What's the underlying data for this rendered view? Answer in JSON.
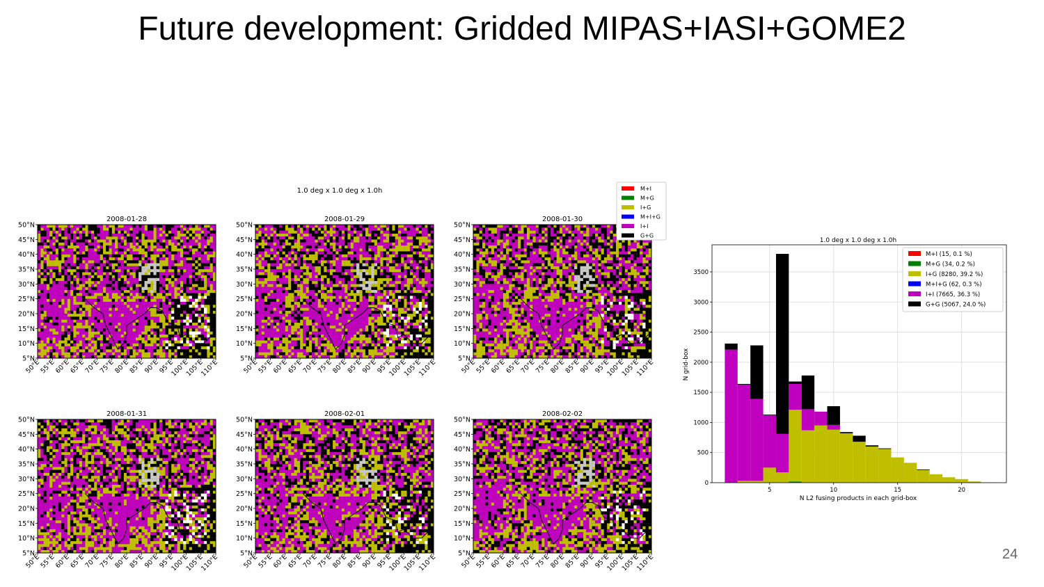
{
  "slide": {
    "title": "Future development: Gridded MIPAS+IASI+GOME2",
    "page_number": "24"
  },
  "maps_figure": {
    "suptitle": "1.0 deg x 1.0 deg x 1.0h",
    "legend": [
      {
        "label": "M+I",
        "color": "#ff0000"
      },
      {
        "label": "M+G",
        "color": "#008000"
      },
      {
        "label": "I+G",
        "color": "#bfbf00"
      },
      {
        "label": "M+I+G",
        "color": "#0000ff"
      },
      {
        "label": "I+I",
        "color": "#bf00bf"
      },
      {
        "label": "G+G",
        "color": "#000000"
      }
    ],
    "panels": [
      {
        "date": "2008-01-28"
      },
      {
        "date": "2008-01-29"
      },
      {
        "date": "2008-01-30"
      },
      {
        "date": "2008-01-31"
      },
      {
        "date": "2008-02-01"
      },
      {
        "date": "2008-02-02"
      }
    ],
    "lat_ticks": [
      "50°N",
      "45°N",
      "40°N",
      "35°N",
      "30°N",
      "25°N",
      "20°N",
      "15°N",
      "10°N",
      "5°N"
    ],
    "lon_ticks": [
      "50°E",
      "55°E",
      "60°E",
      "65°E",
      "70°E",
      "75°E",
      "80°E",
      "85°E",
      "90°E",
      "95°E",
      "100°E",
      "105°E",
      "110°E"
    ],
    "lon_range": [
      50,
      110
    ],
    "lat_range": [
      5,
      50
    ]
  },
  "chart_data": {
    "type": "bar",
    "stacked": true,
    "title": "1.0 deg x 1.0 deg x 1.0h",
    "xlabel": "N L2 fusing products in each grid-box",
    "ylabel": "N grid-box",
    "xlim": [
      0.5,
      23.5
    ],
    "ylim": [
      0,
      3950
    ],
    "xticks": [
      5,
      10,
      15,
      20
    ],
    "yticks": [
      0,
      500,
      1000,
      1500,
      2000,
      2500,
      3000,
      3500
    ],
    "grid": true,
    "legend_position": "top-right",
    "categories": [
      2,
      3,
      4,
      5,
      6,
      7,
      8,
      9,
      10,
      11,
      12,
      13,
      14,
      15,
      16,
      17,
      18,
      19,
      20,
      21,
      22
    ],
    "series": [
      {
        "name": "M+I (15, 0.1 %)",
        "color": "#ff0000",
        "values": [
          0,
          0,
          0,
          0,
          0,
          0,
          0,
          0,
          0,
          0,
          0,
          0,
          0,
          0,
          0,
          0,
          0,
          0,
          0,
          0,
          0
        ]
      },
      {
        "name": "M+G (34, 0.2 %)",
        "color": "#008000",
        "values": [
          0,
          0,
          0,
          0,
          0,
          20,
          0,
          0,
          0,
          0,
          0,
          0,
          0,
          0,
          0,
          0,
          0,
          0,
          0,
          0,
          0
        ]
      },
      {
        "name": "I+G (8280, 39.2 %)",
        "color": "#bfbf00",
        "values": [
          0,
          30,
          30,
          250,
          170,
          1190,
          870,
          950,
          880,
          820,
          680,
          600,
          560,
          420,
          330,
          210,
          140,
          90,
          60,
          20,
          5
        ]
      },
      {
        "name": "M+I+G (62, 0.3 %)",
        "color": "#0000ff",
        "values": [
          0,
          0,
          0,
          0,
          0,
          0,
          0,
          0,
          0,
          0,
          0,
          0,
          0,
          0,
          0,
          0,
          0,
          0,
          0,
          0,
          0
        ]
      },
      {
        "name": "I+I (7665, 36.3 %)",
        "color": "#bf00bf",
        "values": [
          2210,
          1600,
          1360,
          870,
          640,
          430,
          350,
          230,
          80,
          0,
          0,
          0,
          0,
          0,
          0,
          0,
          0,
          0,
          0,
          0,
          0
        ]
      },
      {
        "name": "G+G (5067, 24.0 %)",
        "color": "#000000",
        "values": [
          100,
          10,
          890,
          10,
          2990,
          40,
          560,
          0,
          310,
          20,
          100,
          20,
          10,
          0,
          0,
          10,
          0,
          0,
          0,
          0,
          0
        ]
      }
    ]
  }
}
